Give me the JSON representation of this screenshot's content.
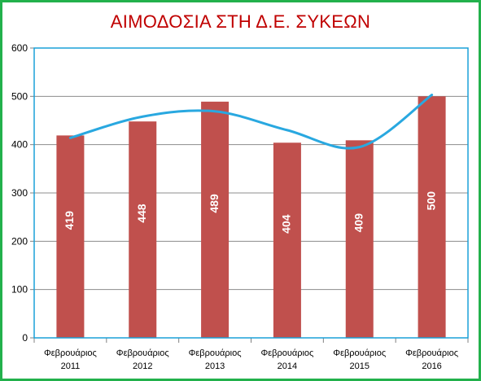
{
  "chart_data": {
    "type": "bar",
    "title": "ΑΙΜΟΔΟΣΙΑ ΣΤΗ Δ.Ε. ΣΥΚΕΩΝ",
    "categories": [
      [
        "Φεβρουάριος",
        "2011"
      ],
      [
        "Φεβρουάριος",
        "2012"
      ],
      [
        "Φεβρουάριος",
        "2013"
      ],
      [
        "Φεβρουάριος",
        "2014"
      ],
      [
        "Φεβρουάριος",
        "2015"
      ],
      [
        "Φεβρουάριος",
        "2016"
      ]
    ],
    "values": [
      419,
      448,
      489,
      404,
      409,
      500
    ],
    "data_labels": [
      "419",
      "448",
      "489",
      "404",
      "409",
      "500"
    ],
    "trendline": {
      "type": "polynomial",
      "values": [
        414,
        458,
        469,
        430,
        395,
        503
      ]
    },
    "ylim": [
      0,
      600
    ],
    "yticks": [
      0,
      100,
      200,
      300,
      400,
      500,
      600
    ],
    "ytick_labels": [
      "0",
      "100",
      "200",
      "300",
      "400",
      "500",
      "600"
    ],
    "grid": true,
    "legend": "none",
    "colors": {
      "bar": "#c0504d",
      "trendline": "#29a8e0",
      "plot_border": "#1aa0d8",
      "frame_border": "#22b14c",
      "title": "#c00000",
      "grid": "#8c8c8c"
    }
  }
}
